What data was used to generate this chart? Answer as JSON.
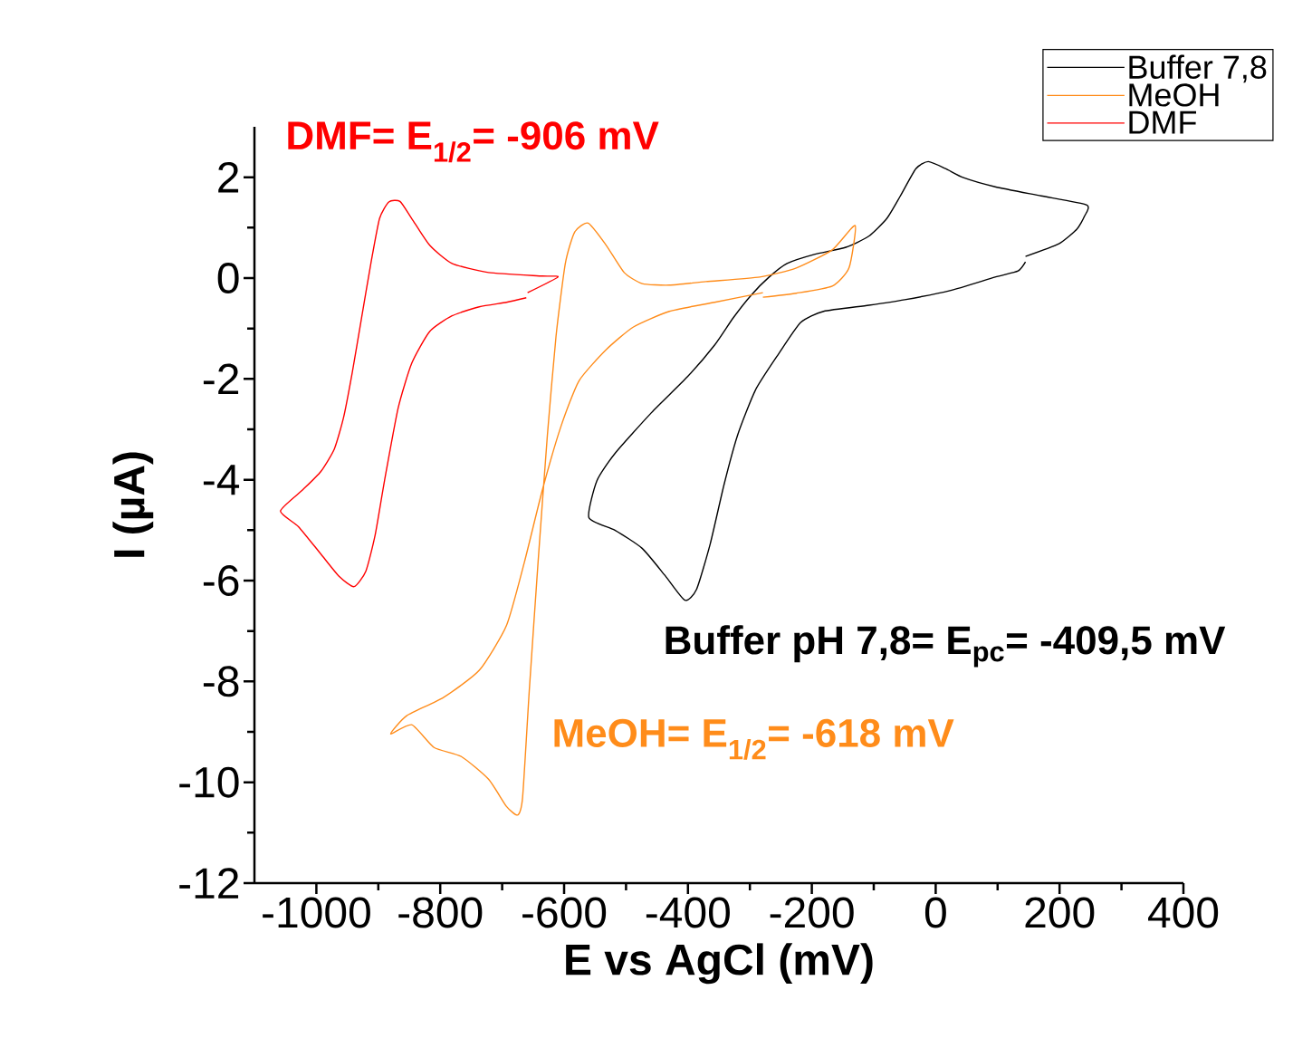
{
  "chart_data": {
    "type": "line",
    "xlabel": "E vs AgCl (mV)",
    "ylabel": "I (µA)",
    "legend": "top right",
    "grid": false,
    "xlim": [
      -1100,
      400
    ],
    "ylim": [
      -12,
      3
    ],
    "xticks": [
      -1000,
      -800,
      -600,
      -400,
      -200,
      0,
      200,
      400
    ],
    "yticks": [
      -12,
      -10,
      -8,
      -6,
      -4,
      -2,
      0,
      2
    ],
    "annotations": [
      "Buffer pH 7,8= E$_{pc}$= -409,5 mV",
      "MeOH= E$_{1/2}$= -618 mV",
      "DMF= E$_{1/2}$= -906 mV"
    ],
    "series": [
      {
        "name": "Buffer 7,8",
        "color": "#000000",
        "x": [
          145,
          199,
          228,
          240,
          244,
          170,
          96,
          45,
          16,
          -12,
          -32,
          -57,
          -79,
          -108,
          -145,
          -196,
          -240,
          -269,
          -298,
          -327,
          -357,
          -401,
          -459,
          -518,
          -547,
          -560,
          -518,
          -474,
          -437,
          -405,
          -386,
          -364,
          -342,
          -320,
          -291,
          -254,
          -218,
          -181,
          -108,
          -50,
          23,
          96,
          133,
          145
        ],
        "values": [
          0.43,
          0.68,
          0.97,
          1.22,
          1.45,
          1.63,
          1.81,
          1.99,
          2.17,
          2.31,
          2.17,
          1.63,
          1.18,
          0.83,
          0.61,
          0.47,
          0.29,
          0.02,
          -0.34,
          -0.79,
          -1.33,
          -1.96,
          -2.67,
          -3.48,
          -4.02,
          -4.75,
          -5.0,
          -5.36,
          -5.9,
          -6.39,
          -6.17,
          -5.27,
          -4.11,
          -3.12,
          -2.22,
          -1.51,
          -0.88,
          -0.66,
          -0.54,
          -0.43,
          -0.25,
          0.02,
          0.14,
          0.32
        ]
      },
      {
        "name": "MeOH",
        "color": "#ff8c1a",
        "x": [
          -279,
          -225,
          -167,
          -140,
          -130,
          -167,
          -225,
          -284,
          -371,
          -430,
          -474,
          -503,
          -532,
          -561,
          -583,
          -598,
          -613,
          -627,
          -642,
          -656,
          -667,
          -675,
          -693,
          -722,
          -766,
          -810,
          -846,
          -880,
          -854,
          -795,
          -737,
          -693,
          -664,
          -635,
          -605,
          -576,
          -532,
          -488,
          -430,
          -357,
          -279
        ],
        "values": [
          -0.38,
          -0.3,
          -0.16,
          0.2,
          1.04,
          0.56,
          0.2,
          0.02,
          -0.07,
          -0.14,
          -0.11,
          0.11,
          0.65,
          1.09,
          0.91,
          0.29,
          -1.15,
          -3.12,
          -5.63,
          -8.14,
          -10.3,
          -10.65,
          -10.48,
          -9.94,
          -9.49,
          -9.31,
          -8.86,
          -9.04,
          -8.68,
          -8.32,
          -7.78,
          -6.89,
          -5.63,
          -4.2,
          -2.94,
          -2.04,
          -1.42,
          -0.97,
          -0.66,
          -0.48,
          -0.29
        ]
      },
      {
        "name": "DMF",
        "color": "#ff0000",
        "x": [
          -659,
          -610,
          -635,
          -722,
          -781,
          -817,
          -846,
          -865,
          -883,
          -898,
          -912,
          -927,
          -942,
          -956,
          -971,
          -993,
          -1022,
          -1058,
          -1029,
          -993,
          -963,
          -939,
          -920,
          -905,
          -890,
          -868,
          -846,
          -817,
          -781,
          -737,
          -693,
          -661
        ],
        "values": [
          -0.29,
          0.02,
          0.04,
          0.11,
          0.29,
          0.65,
          1.18,
          1.52,
          1.51,
          1.18,
          0.29,
          -0.79,
          -1.87,
          -2.76,
          -3.39,
          -3.84,
          -4.2,
          -4.62,
          -4.93,
          -5.47,
          -5.92,
          -6.12,
          -5.81,
          -5.09,
          -4.02,
          -2.58,
          -1.69,
          -1.06,
          -0.75,
          -0.57,
          -0.48,
          -0.39
        ]
      }
    ]
  }
}
